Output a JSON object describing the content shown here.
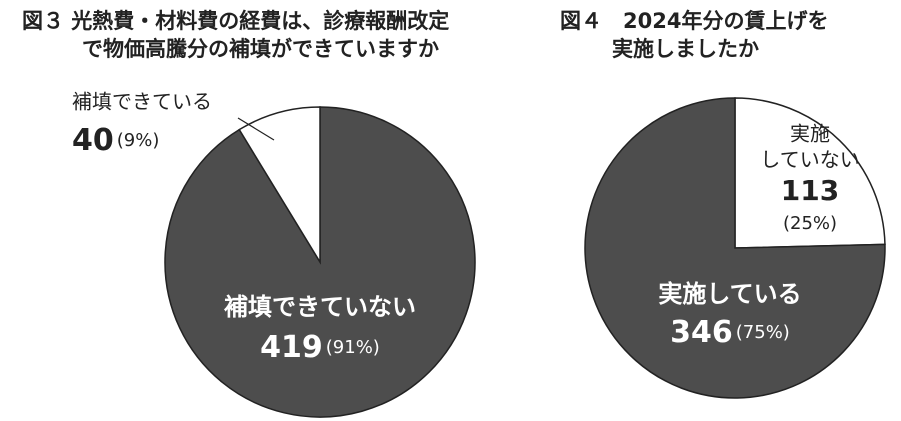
{
  "chart_data": [
    {
      "type": "pie",
      "title": [
        "図３ 光熱費・材料費の経費は、診療報酬改定",
        "で物価高騰分の補填ができていますか"
      ],
      "labels": [
        [
          "補填できていない"
        ],
        [
          "補填できている"
        ]
      ],
      "values": [
        419,
        40
      ],
      "percents": [
        91,
        9
      ],
      "percent_labels": [
        "(91%)",
        "(9%)"
      ],
      "colors": [
        "#4d4d4d",
        "#ffffff"
      ]
    },
    {
      "type": "pie",
      "title": [
        "図４　2024年分の賃上げを",
        "実施しましたか"
      ],
      "labels": [
        [
          "実施",
          "していない"
        ],
        [
          "実施している"
        ]
      ],
      "values": [
        113,
        346
      ],
      "percents": [
        25,
        75
      ],
      "percent_labels": [
        "(25%)",
        "(75%)"
      ],
      "colors": [
        "#ffffff",
        "#4d4d4d"
      ]
    }
  ]
}
